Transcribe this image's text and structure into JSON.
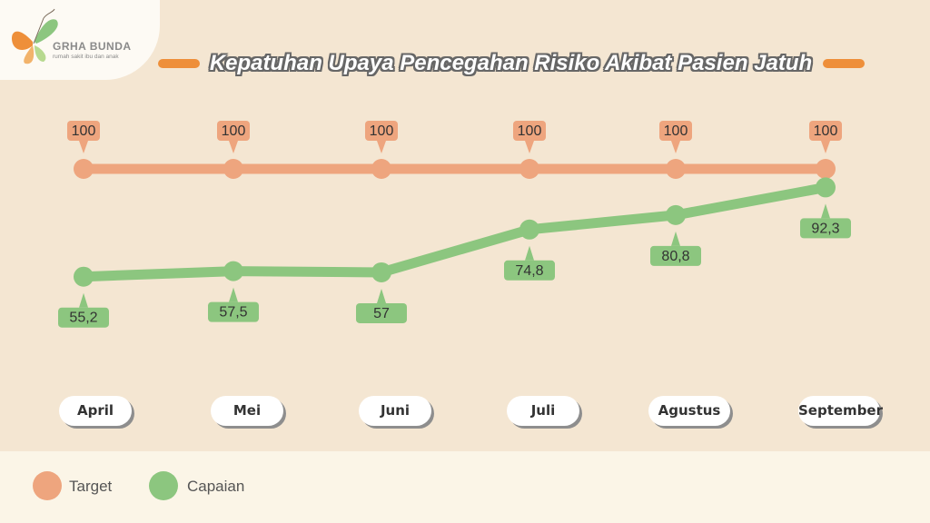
{
  "logo": {
    "name": "GRHA BUNDA",
    "tagline": "rumah sakit ibu dan anak"
  },
  "title": "Kepatuhan Upaya Pencegahan Risiko Akibat Pasien Jatuh",
  "colors": {
    "target": "#eea57e",
    "capaian": "#8cc67f",
    "title_bar": "#ee8f3a",
    "background": "#f4e6d2"
  },
  "chart_data": {
    "type": "line",
    "title": "Kepatuhan Upaya Pencegahan Risiko Akibat Pasien Jatuh",
    "categories": [
      "April",
      "Mei",
      "Juni",
      "Juli",
      "Agustus",
      "September"
    ],
    "series": [
      {
        "name": "Target",
        "values": [
          100,
          100,
          100,
          100,
          100,
          100
        ],
        "labels": [
          "100",
          "100",
          "100",
          "100",
          "100",
          "100"
        ]
      },
      {
        "name": "Capaian",
        "values": [
          55.2,
          57.5,
          57,
          74.8,
          80.8,
          92.3
        ],
        "labels": [
          "55,2",
          "57,5",
          "57",
          "74,8",
          "80,8",
          "92,3"
        ]
      }
    ],
    "legend": "bottom-left",
    "grid": false
  },
  "legend": {
    "target_label": "Target",
    "capaian_label": "Capaian"
  }
}
